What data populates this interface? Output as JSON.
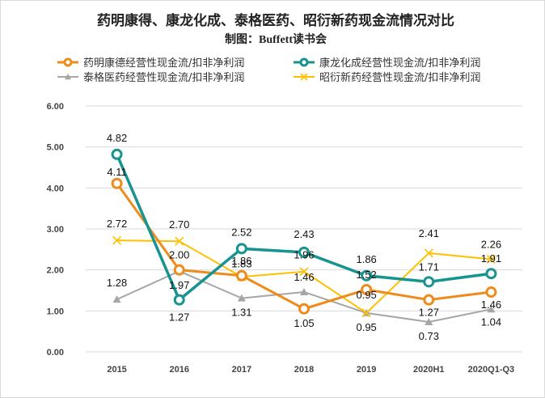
{
  "chart_data": {
    "type": "line",
    "title": "药明康得、康龙化成、泰格医药、昭衍新药现金流情况对比",
    "subtitle": "制图：Buffett读书会",
    "categories": [
      "2015",
      "2016",
      "2017",
      "2018",
      "2019",
      "2020H1",
      "2020Q1-Q3"
    ],
    "y_ticks": [
      "0.00",
      "1.00",
      "2.00",
      "3.00",
      "4.00",
      "5.00",
      "6.00"
    ],
    "ylim": [
      0,
      6
    ],
    "grid": true,
    "legend_position": "top",
    "series": [
      {
        "name": "药明康德经营性现金流/扣非净利润",
        "color": "#ED8C1C",
        "marker": "circle",
        "values": [
          4.11,
          2.0,
          1.86,
          1.05,
          1.52,
          1.27,
          1.46
        ]
      },
      {
        "name": "康龙化成经营性现金流/扣非净利润",
        "color": "#17948F",
        "marker": "circle",
        "values": [
          4.82,
          1.27,
          2.52,
          2.43,
          1.86,
          1.71,
          1.91
        ]
      },
      {
        "name": "泰格医药经营性现金流/扣非净利润",
        "color": "#A6A6A6",
        "marker": "triangle",
        "values": [
          1.28,
          1.97,
          1.31,
          1.46,
          0.95,
          0.73,
          1.04
        ]
      },
      {
        "name": "昭衍新药经营性现金流/扣非净利润",
        "color": "#FFC000",
        "marker": "x",
        "values": [
          2.72,
          2.7,
          1.83,
          1.96,
          0.95,
          2.41,
          2.26
        ]
      }
    ],
    "data_labels": [
      [
        "4.11",
        "2.00",
        "1.86",
        "1.05",
        "1.52",
        "1.27",
        "1.46"
      ],
      [
        "4.82",
        "1.27",
        "2.52",
        "2.43",
        "1.86",
        "1.71",
        "1.91"
      ],
      [
        "1.28",
        "1.97",
        "1.31",
        "1.46",
        "0.95",
        "0.73",
        "1.04"
      ],
      [
        "2.72",
        "2.70",
        "1.83",
        "1.96",
        "0.95",
        "2.41",
        "2.26"
      ]
    ]
  }
}
